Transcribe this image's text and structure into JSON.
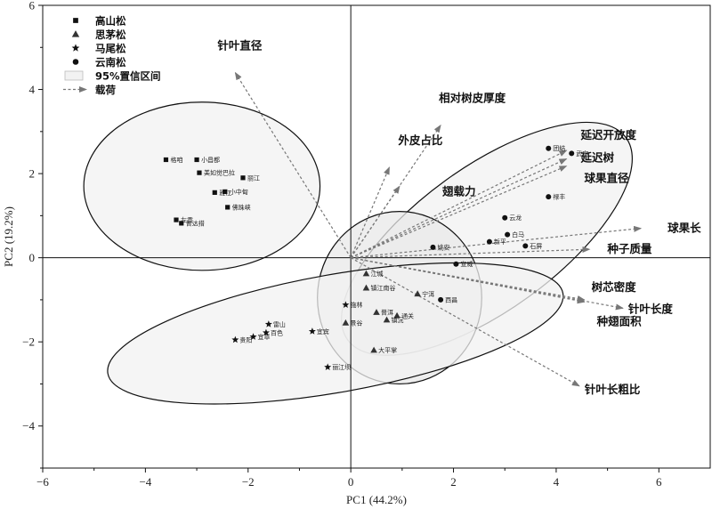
{
  "chart_data": {
    "type": "scatter",
    "xlabel": "PC1 (44.2%)",
    "ylabel": "PC2 (19.2%)",
    "xlim": [
      -6,
      7
    ],
    "ylim": [
      -5,
      6
    ],
    "xticks": [
      -6,
      -4,
      -2,
      0,
      2,
      4,
      6
    ],
    "yticks": [
      -4,
      -2,
      0,
      2,
      4,
      6
    ],
    "legend": {
      "position": "top-left",
      "entries": [
        {
          "label": "高山松",
          "marker": "square"
        },
        {
          "label": "思茅松",
          "marker": "triangle"
        },
        {
          "label": "马尾松",
          "marker": "star"
        },
        {
          "label": "云南松",
          "marker": "circle"
        },
        {
          "label": "95%置信区间",
          "marker": "ellipse"
        },
        {
          "label": "载荷",
          "marker": "arrow"
        }
      ]
    },
    "series": [
      {
        "name": "高山松",
        "marker": "square",
        "points": [
          {
            "label": "格咱",
            "x": -3.6,
            "y": 2.33
          },
          {
            "label": "小昌都",
            "x": -3.0,
            "y": 2.33
          },
          {
            "label": "美如觉巴拉",
            "x": -2.95,
            "y": 2.02
          },
          {
            "label": "丽江",
            "x": -2.1,
            "y": 1.9
          },
          {
            "label": "雅江",
            "x": -2.65,
            "y": 1.55
          },
          {
            "label": "小中甸",
            "x": -2.45,
            "y": 1.57
          },
          {
            "label": "佛珠峡",
            "x": -2.4,
            "y": 1.2
          },
          {
            "label": "左贡",
            "x": -3.4,
            "y": 0.9
          },
          {
            "label": "普达措",
            "x": -3.3,
            "y": 0.82
          }
        ]
      },
      {
        "name": "思茅松",
        "marker": "triangle",
        "points": [
          {
            "label": "江城",
            "x": 0.3,
            "y": -0.38
          },
          {
            "label": "镇江南谷",
            "x": 0.3,
            "y": -0.72
          },
          {
            "label": "宁洱",
            "x": 1.3,
            "y": -0.86
          },
          {
            "label": "普洱",
            "x": 0.5,
            "y": -1.3
          },
          {
            "label": "通关",
            "x": 0.9,
            "y": -1.38
          },
          {
            "label": "景谷",
            "x": -0.1,
            "y": -1.55
          },
          {
            "label": "镇沅",
            "x": 0.7,
            "y": -1.48
          },
          {
            "label": "大平掌",
            "x": 0.45,
            "y": -2.2
          }
        ]
      },
      {
        "name": "马尾松",
        "marker": "star",
        "points": [
          {
            "label": "施林",
            "x": -0.1,
            "y": -1.12
          },
          {
            "label": "雷山",
            "x": -1.6,
            "y": -1.58
          },
          {
            "label": "贵阳",
            "x": -2.25,
            "y": -1.95
          },
          {
            "label": "宜章",
            "x": -1.9,
            "y": -1.88
          },
          {
            "label": "百色",
            "x": -1.65,
            "y": -1.78
          },
          {
            "label": "宜宾",
            "x": -0.75,
            "y": -1.75
          },
          {
            "label": "丽江坝",
            "x": -0.45,
            "y": -2.6
          }
        ]
      },
      {
        "name": "云南松",
        "marker": "circle",
        "points": [
          {
            "label": "团结",
            "x": 3.85,
            "y": 2.6
          },
          {
            "label": "武定",
            "x": 4.3,
            "y": 2.48
          },
          {
            "label": "禄丰",
            "x": 3.85,
            "y": 1.45
          },
          {
            "label": "云龙",
            "x": 3.0,
            "y": 0.95
          },
          {
            "label": "新平",
            "x": 2.7,
            "y": 0.38
          },
          {
            "label": "白马",
            "x": 3.05,
            "y": 0.55
          },
          {
            "label": "石屏",
            "x": 3.4,
            "y": 0.28
          },
          {
            "label": "姚安",
            "x": 1.6,
            "y": 0.25
          },
          {
            "label": "宣威",
            "x": 2.05,
            "y": -0.15
          },
          {
            "label": "西昌",
            "x": 1.75,
            "y": -1.0
          }
        ]
      }
    ],
    "ellipses": [
      {
        "name": "高山松",
        "cx": -2.9,
        "cy": 1.7,
        "rx": 2.3,
        "ry": 2.0,
        "angle": 0
      },
      {
        "name": "云南松",
        "cx": 2.65,
        "cy": 0.45,
        "rx": 3.35,
        "ry": 1.7,
        "angle": 36
      },
      {
        "name": "思茅松",
        "cx": 0.95,
        "cy": -0.95,
        "rx": 1.6,
        "ry": 2.05,
        "angle": 0
      },
      {
        "name": "马尾松",
        "cx": -0.3,
        "cy": -1.8,
        "rx": 4.5,
        "ry": 1.4,
        "angle": 10
      }
    ],
    "loadings": [
      {
        "label": "针叶直径",
        "x": -2.25,
        "y": 4.4
      },
      {
        "label": "相对树皮厚度",
        "x": 1.75,
        "y": 3.15
      },
      {
        "label": "外皮占比",
        "x": 0.75,
        "y": 2.15
      },
      {
        "label": "翅载力",
        "x": 0.95,
        "y": 1.7
      },
      {
        "label": "延迟开放度",
        "x": 4.2,
        "y": 2.55
      },
      {
        "label": "延迟树",
        "x": 4.2,
        "y": 2.35
      },
      {
        "label": "球果直径",
        "x": 4.2,
        "y": 2.18
      },
      {
        "label": "球果长",
        "x": 5.65,
        "y": 0.7
      },
      {
        "label": "种子质量",
        "x": 4.65,
        "y": 0.2
      },
      {
        "label": "树芯密度",
        "x": 4.55,
        "y": -1.0
      },
      {
        "label": "针叶长度",
        "x": 5.3,
        "y": -1.2
      },
      {
        "label": "种翅面积",
        "x": 4.55,
        "y": -1.05
      },
      {
        "label": "针叶长粗比",
        "x": 4.45,
        "y": -3.05
      }
    ],
    "loading_label_offsets": {
      "针叶直径": [
        -20,
        -26
      ],
      "相对树皮厚度": [
        -2,
        -26
      ],
      "外皮占比": [
        10,
        -26
      ],
      "翅载力": [
        48,
        10
      ],
      "延迟开放度": [
        16,
        -13
      ],
      "延迟树": [
        16,
        3
      ],
      "球果直径": [
        20,
        18
      ],
      "球果长": [
        30,
        4
      ],
      "种子质量": [
        20,
        4
      ],
      "树芯密度": [
        8,
        -10
      ],
      "针叶长度": [
        6,
        5
      ],
      "种翅面积": [
        14,
        26
      ],
      "针叶长粗比": [
        6,
        8
      ]
    },
    "grid": false
  }
}
